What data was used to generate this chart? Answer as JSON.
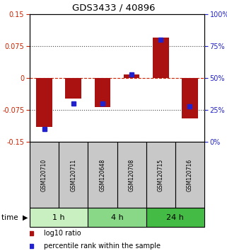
{
  "title": "GDS3433 / 40896",
  "samples": [
    "GSM120710",
    "GSM120711",
    "GSM120648",
    "GSM120708",
    "GSM120715",
    "GSM120716"
  ],
  "log10_ratio": [
    -0.115,
    -0.048,
    -0.068,
    0.008,
    0.095,
    -0.095
  ],
  "percentile_rank": [
    10,
    30,
    30,
    53,
    80,
    28
  ],
  "time_groups": [
    {
      "label": "1 h",
      "color": "#c8f0c0",
      "size": 2
    },
    {
      "label": "4 h",
      "color": "#88d888",
      "size": 2
    },
    {
      "label": "24 h",
      "color": "#44bb44",
      "size": 2
    }
  ],
  "ylim_left": [
    -0.15,
    0.15
  ],
  "ylim_right": [
    0,
    100
  ],
  "yticks_left": [
    -0.15,
    -0.075,
    0,
    0.075,
    0.15
  ],
  "yticks_right": [
    0,
    25,
    50,
    75,
    100
  ],
  "bar_color": "#aa1111",
  "dot_color": "#2222cc",
  "label_color_left": "#cc2200",
  "label_color_right": "#2222cc",
  "bg_sample": "#c8c8c8",
  "hline_color_zero": "#cc2200",
  "hline_color_other": "#444444",
  "bar_width": 0.55
}
